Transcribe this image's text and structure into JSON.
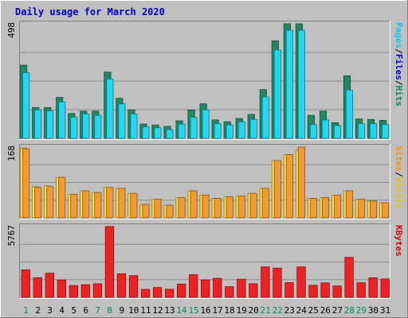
{
  "chart_data": {
    "type": "bar",
    "title": "Daily usage for March 2020",
    "categories": [
      "1",
      "2",
      "3",
      "4",
      "5",
      "6",
      "7",
      "8",
      "9",
      "10",
      "11",
      "12",
      "13",
      "14",
      "15",
      "16",
      "17",
      "18",
      "19",
      "20",
      "21",
      "22",
      "23",
      "24",
      "25",
      "26",
      "27",
      "28",
      "29",
      "30",
      "31"
    ],
    "weekend_days": [
      "1",
      "7",
      "8",
      "14",
      "15",
      "21",
      "22",
      "28",
      "29"
    ],
    "panels": [
      {
        "id": "pages-files-hits",
        "ymax_label": "498",
        "ymax": 498,
        "legend": [
          {
            "text": "Pages",
            "color": "#00c8ff"
          },
          {
            "text": "/",
            "color": "#000000"
          },
          {
            "text": "Files",
            "color": "#0000e6"
          },
          {
            "text": "/",
            "color": "#000000"
          },
          {
            "text": "Hits",
            "color": "#008a5e"
          }
        ],
        "series": [
          {
            "name": "Hits",
            "color": "#1f8a62",
            "values": [
              318,
              134,
              134,
              178,
              108,
              118,
              118,
              288,
              174,
              124,
              62,
              58,
              52,
              76,
              124,
              150,
              80,
              72,
              86,
              104,
              212,
              424,
              498,
              498,
              100,
              118,
              68,
              272,
              84,
              82,
              78
            ]
          },
          {
            "name": "Files",
            "color": "#2244dd",
            "values": [
              286,
              124,
              120,
              158,
              92,
              106,
              100,
              258,
              150,
              106,
              50,
              46,
              38,
              62,
              92,
              124,
              64,
              58,
              72,
              82,
              180,
              384,
              470,
              470,
              60,
              80,
              56,
              210,
              64,
              64,
              60
            ]
          },
          {
            "name": "Pages",
            "color": "#20d8f2",
            "values": [
              286,
              124,
              120,
              158,
              92,
              106,
              100,
              258,
              150,
              106,
              50,
              46,
              38,
              62,
              92,
              124,
              64,
              58,
              72,
              82,
              180,
              384,
              470,
              470,
              60,
              80,
              56,
              210,
              64,
              64,
              60
            ]
          }
        ]
      },
      {
        "id": "visits-sites",
        "ymax_label": "168",
        "ymax": 168,
        "legend": [
          {
            "text": "Sites",
            "color": "#ff8c00"
          },
          {
            "text": "/",
            "color": "#000000"
          },
          {
            "text": "Visits",
            "color": "#e6c200"
          }
        ],
        "series": [
          {
            "name": "Visits",
            "color": "#f8e14a",
            "values": [
              166,
              74,
              76,
              96,
              56,
              64,
              60,
              72,
              70,
              58,
              32,
              44,
              30,
              48,
              64,
              54,
              46,
              50,
              52,
              58,
              70,
              136,
              150,
              160,
              46,
              48,
              54,
              64,
              44,
              40,
              36
            ]
          },
          {
            "name": "Sites",
            "color": "#f59a2e",
            "values": [
              164,
              72,
              74,
              96,
              56,
              64,
              60,
              72,
              70,
              58,
              32,
              44,
              30,
              48,
              64,
              54,
              46,
              50,
              52,
              58,
              70,
              136,
              150,
              168,
              46,
              48,
              54,
              64,
              44,
              40,
              36
            ]
          }
        ]
      },
      {
        "id": "kbytes",
        "ymax_label": "5767",
        "ymax": 5767,
        "legend": [
          {
            "text": "KBytes",
            "color": "#e00000"
          }
        ],
        "series": [
          {
            "name": "KBytes",
            "color": "#ee2222",
            "values": [
              2240,
              1600,
              1970,
              1410,
              960,
              1030,
              1110,
              5767,
              1920,
              1770,
              650,
              800,
              660,
              1080,
              1840,
              1420,
              1550,
              870,
              1480,
              1110,
              2480,
              2380,
              1200,
              2480,
              980,
              1180,
              930,
              3260,
              1190,
              1590,
              1500
            ]
          }
        ]
      }
    ]
  }
}
